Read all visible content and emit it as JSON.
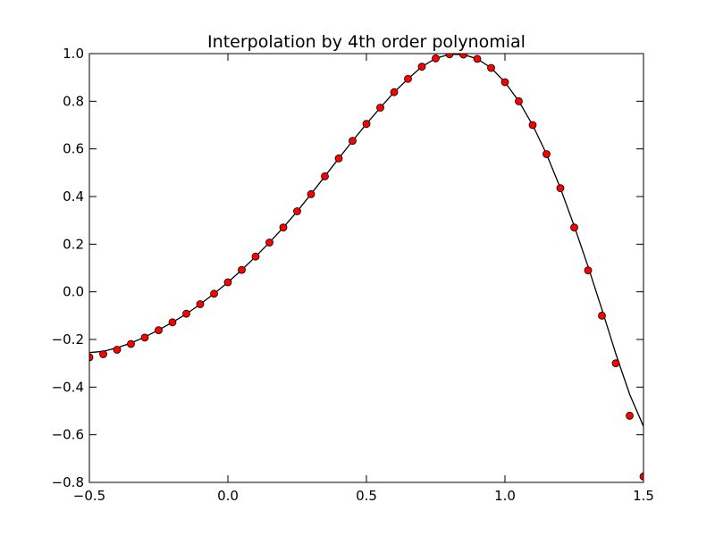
{
  "chart_data": {
    "type": "line",
    "title": "Interpolation by 4th order polynomial",
    "xlabel": "",
    "ylabel": "",
    "xlim": [
      -0.5,
      1.5
    ],
    "ylim": [
      -0.8,
      1.0
    ],
    "xticks": [
      -0.5,
      0.0,
      0.5,
      1.0,
      1.5
    ],
    "xtick_labels": [
      "−0.5",
      "0.0",
      "0.5",
      "1.0",
      "1.5"
    ],
    "yticks": [
      -0.8,
      -0.6,
      -0.4,
      -0.2,
      0.0,
      0.2,
      0.4,
      0.6,
      0.8,
      1.0
    ],
    "ytick_labels": [
      "−0.8",
      "−0.6",
      "−0.4",
      "−0.2",
      "0.0",
      "0.2",
      "0.4",
      "0.6",
      "0.8",
      "1.0"
    ],
    "grid": false,
    "series": [
      {
        "style": "line",
        "color": "#000000",
        "x": [
          -0.5,
          -0.45,
          -0.4,
          -0.35,
          -0.3,
          -0.25,
          -0.2,
          -0.15,
          -0.1,
          -0.05,
          0.0,
          0.05,
          0.1,
          0.15,
          0.2,
          0.25,
          0.3,
          0.35,
          0.4,
          0.45,
          0.5,
          0.55,
          0.6,
          0.65,
          0.7,
          0.75,
          0.8,
          0.85,
          0.9,
          0.95,
          1.0,
          1.05,
          1.1,
          1.15,
          1.2,
          1.25,
          1.3,
          1.35,
          1.4,
          1.45,
          1.5
        ],
        "y": [
          -0.255,
          -0.25,
          -0.235,
          -0.215,
          -0.19,
          -0.16,
          -0.128,
          -0.093,
          -0.052,
          -0.008,
          0.04,
          0.092,
          0.148,
          0.207,
          0.27,
          0.338,
          0.41,
          0.485,
          0.56,
          0.634,
          0.705,
          0.773,
          0.838,
          0.894,
          0.945,
          0.98,
          0.997,
          0.996,
          0.978,
          0.94,
          0.88,
          0.8,
          0.7,
          0.578,
          0.435,
          0.276,
          0.106,
          -0.074,
          -0.26,
          -0.43,
          -0.565
        ]
      },
      {
        "style": "markers",
        "color": "#ff0000",
        "x": [
          -0.5,
          -0.45,
          -0.4,
          -0.35,
          -0.3,
          -0.25,
          -0.2,
          -0.15,
          -0.1,
          -0.05,
          0.0,
          0.05,
          0.1,
          0.15,
          0.2,
          0.25,
          0.3,
          0.35,
          0.4,
          0.45,
          0.5,
          0.55,
          0.6,
          0.65,
          0.7,
          0.75,
          0.8,
          0.85,
          0.9,
          0.95,
          1.0,
          1.05,
          1.1,
          1.15,
          1.2,
          1.25,
          1.3,
          1.35,
          1.4,
          1.45,
          1.5
        ],
        "y": [
          -0.275,
          -0.262,
          -0.243,
          -0.219,
          -0.192,
          -0.161,
          -0.128,
          -0.092,
          -0.052,
          -0.008,
          0.04,
          0.092,
          0.148,
          0.207,
          0.27,
          0.338,
          0.41,
          0.485,
          0.56,
          0.634,
          0.705,
          0.773,
          0.838,
          0.894,
          0.945,
          0.98,
          0.997,
          0.996,
          0.978,
          0.94,
          0.88,
          0.8,
          0.7,
          0.578,
          0.435,
          0.27,
          0.09,
          -0.1,
          -0.3,
          -0.52,
          -0.775
        ]
      }
    ]
  }
}
